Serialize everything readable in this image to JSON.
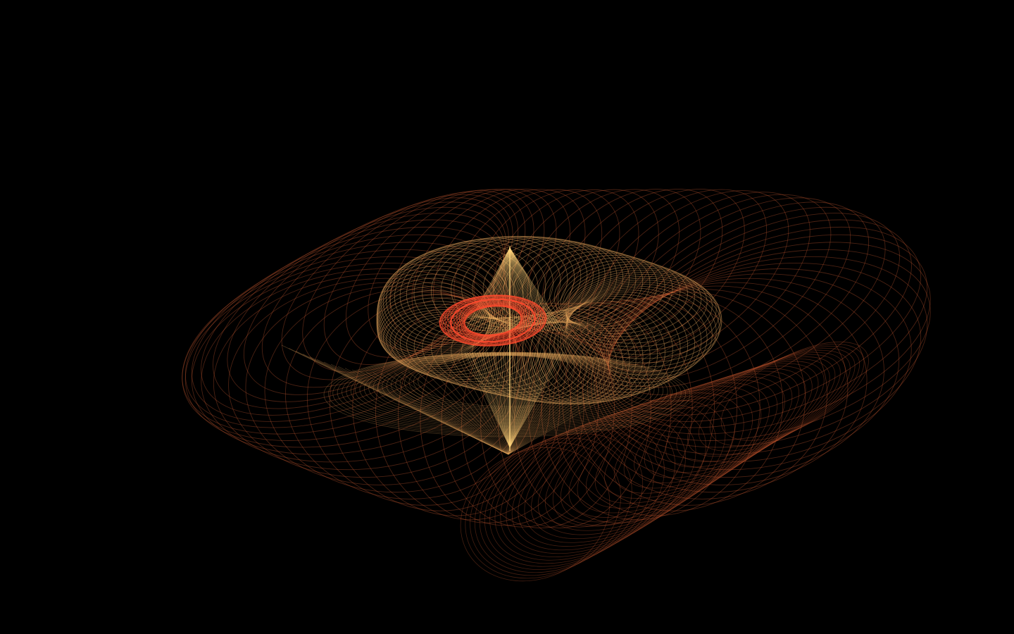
{
  "scene": {
    "description_visible_text": "",
    "background_color": "#000000",
    "palette": {
      "outer": "#c2572f",
      "mid": "#e0a25a",
      "inner": "#ffd27a",
      "core": "#ff4a2e"
    },
    "structures": [
      "outer-loop-shell",
      "lower-loop-lobe",
      "middle-lens-shell",
      "lower-fan",
      "central-spike",
      "core-ring"
    ]
  }
}
